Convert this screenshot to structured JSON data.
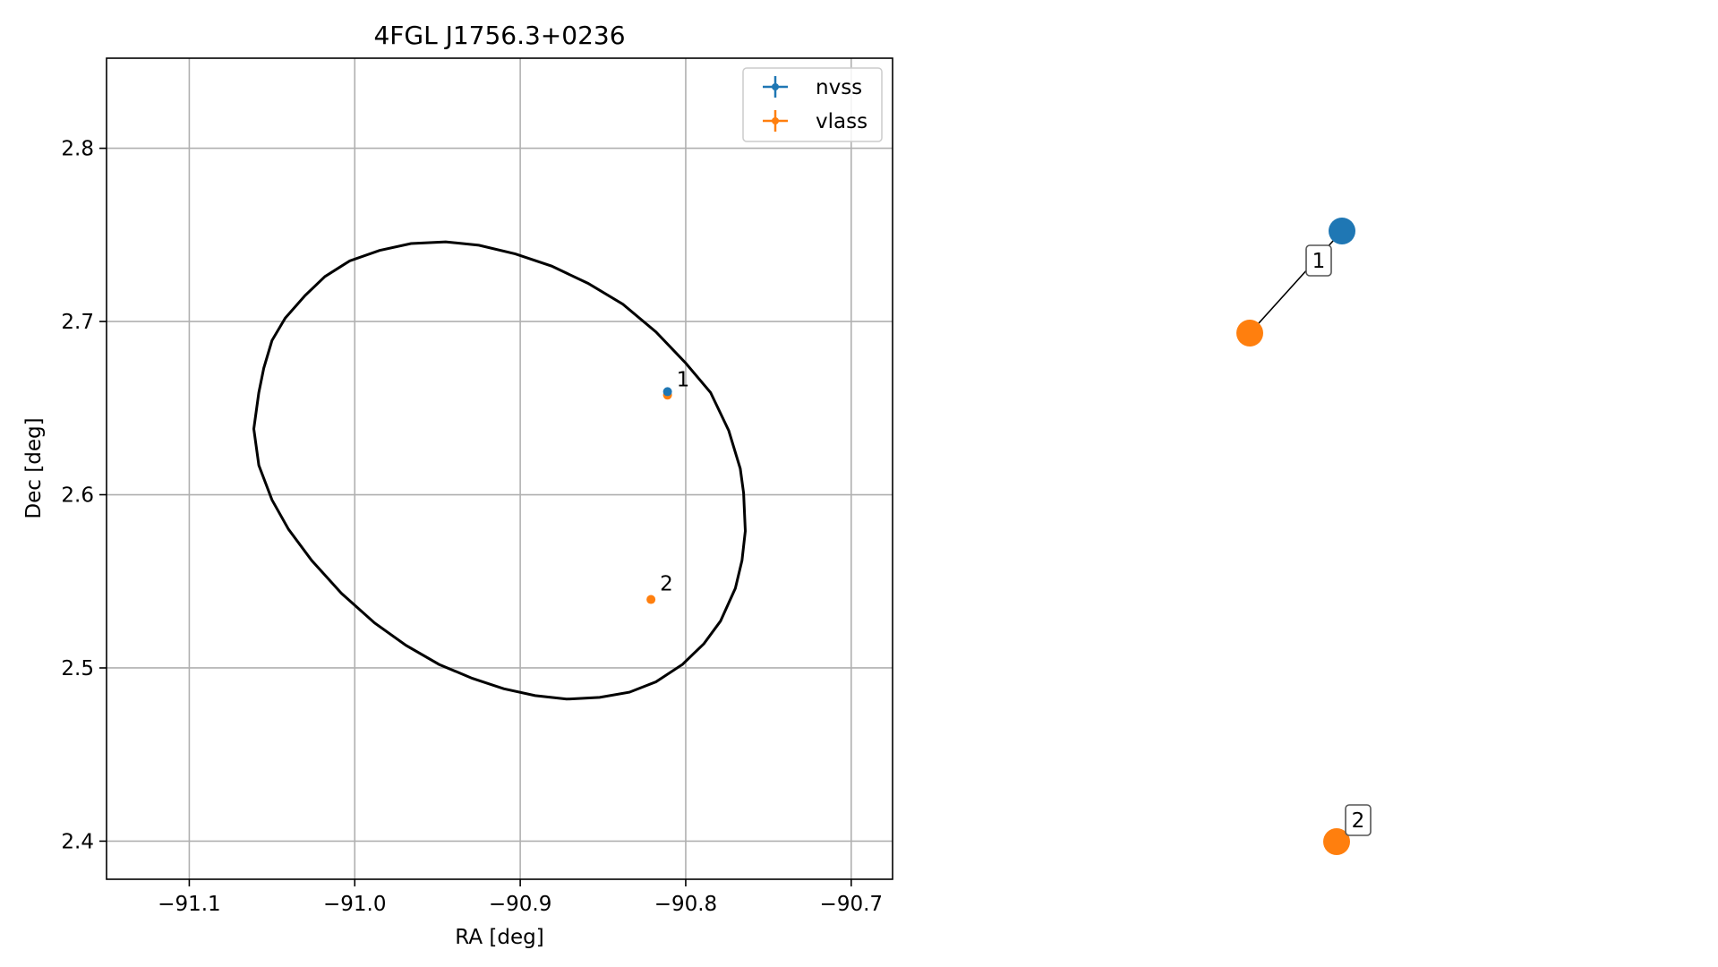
{
  "chart_data": [
    {
      "type": "scatter",
      "title": "4FGL J1756.3+0236",
      "xlabel": "RA [deg]",
      "ylabel": "Dec [deg]",
      "xlim": [
        -91.15,
        -90.675
      ],
      "ylim": [
        2.378,
        2.852
      ],
      "x_ticks": [
        -91.1,
        -91.0,
        -90.9,
        -90.8,
        -90.7
      ],
      "x_tick_labels": [
        "−91.1",
        "−91.0",
        "−90.9",
        "−90.8",
        "−90.7"
      ],
      "y_ticks": [
        2.4,
        2.5,
        2.6,
        2.7,
        2.8
      ],
      "y_tick_labels": [
        "2.4",
        "2.5",
        "2.6",
        "2.7",
        "2.8"
      ],
      "grid": true,
      "legend_placement": "top-right",
      "series": [
        {
          "name": "nvss",
          "color": "#1f77b4",
          "points": [
            {
              "x": -90.811,
              "y": 2.6595,
              "label": "1"
            }
          ]
        },
        {
          "name": "vlass",
          "color": "#ff7f0e",
          "points": [
            {
              "x": -90.811,
              "y": 2.6575,
              "label": "1"
            },
            {
              "x": -90.821,
              "y": 2.5395,
              "label": "2"
            }
          ]
        }
      ],
      "ellipse_color": "#000000",
      "ellipse_points": [
        [
          -91.058,
          2.659
        ],
        [
          -91.055,
          2.673
        ],
        [
          -91.05,
          2.689
        ],
        [
          -91.042,
          2.702
        ],
        [
          -91.03,
          2.715
        ],
        [
          -91.018,
          2.726
        ],
        [
          -91.003,
          2.735
        ],
        [
          -90.985,
          2.741
        ],
        [
          -90.966,
          2.745
        ],
        [
          -90.945,
          2.746
        ],
        [
          -90.925,
          2.744
        ],
        [
          -90.903,
          2.739
        ],
        [
          -90.881,
          2.732
        ],
        [
          -90.859,
          2.722
        ],
        [
          -90.838,
          2.71
        ],
        [
          -90.818,
          2.694
        ],
        [
          -90.8,
          2.676
        ],
        [
          -90.785,
          2.659
        ],
        [
          -90.774,
          2.637
        ],
        [
          -90.767,
          2.615
        ],
        [
          -90.765,
          2.601
        ],
        [
          -90.764,
          2.579
        ],
        [
          -90.766,
          2.562
        ],
        [
          -90.77,
          2.546
        ],
        [
          -90.779,
          2.527
        ],
        [
          -90.789,
          2.514
        ],
        [
          -90.802,
          2.502
        ],
        [
          -90.818,
          2.492
        ],
        [
          -90.834,
          2.486
        ],
        [
          -90.852,
          2.483
        ],
        [
          -90.872,
          2.482
        ],
        [
          -90.891,
          2.484
        ],
        [
          -90.91,
          2.488
        ],
        [
          -90.929,
          2.494
        ],
        [
          -90.949,
          2.502
        ],
        [
          -90.969,
          2.513
        ],
        [
          -90.988,
          2.526
        ],
        [
          -91.008,
          2.543
        ],
        [
          -91.026,
          2.562
        ],
        [
          -91.04,
          2.58
        ],
        [
          -91.05,
          2.597
        ],
        [
          -91.058,
          2.617
        ],
        [
          -91.061,
          2.638
        ],
        [
          -91.058,
          2.659
        ]
      ]
    },
    {
      "type": "network",
      "nodes": [
        {
          "id": "nvss-1",
          "color": "#1f77b4"
        },
        {
          "id": "vlass-1",
          "color": "#ff7f0e"
        },
        {
          "id": "vlass-2",
          "color": "#ff7f0e"
        }
      ],
      "edges": [
        {
          "source": "nvss-1",
          "target": "vlass-1",
          "label": "1"
        }
      ],
      "node_labels": [
        {
          "node": "vlass-2",
          "label": "2"
        }
      ]
    }
  ]
}
